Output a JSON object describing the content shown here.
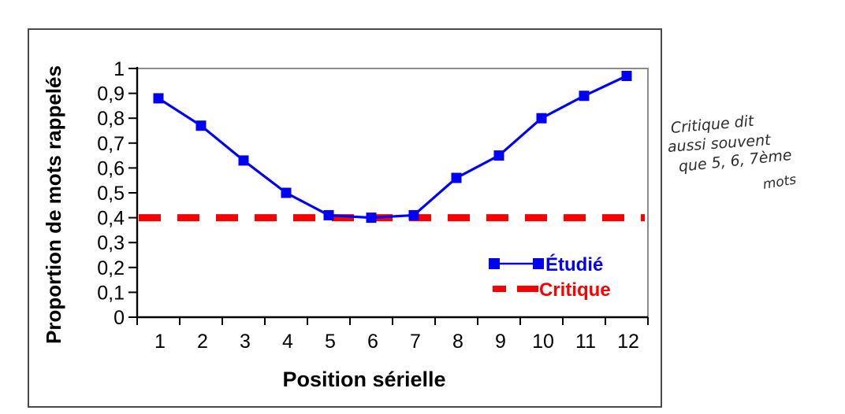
{
  "chart_data": {
    "type": "line",
    "categories": [
      "1",
      "2",
      "3",
      "4",
      "5",
      "6",
      "7",
      "8",
      "9",
      "10",
      "11",
      "12"
    ],
    "series": [
      {
        "name": "Étudié",
        "color": "#0000F5",
        "marker": "square",
        "line_style": "solid",
        "values": [
          0.88,
          0.77,
          0.63,
          0.5,
          0.41,
          0.4,
          0.41,
          0.56,
          0.65,
          0.8,
          0.89,
          0.97
        ]
      },
      {
        "name": "Critique",
        "color": "#FA0000",
        "marker": "none",
        "line_style": "dashed",
        "type": "hline",
        "value": 0.4
      }
    ],
    "title": "",
    "xlabel": "Position sérielle",
    "ylabel": "Proportion de mots rappelés",
    "ylim": [
      0,
      1
    ],
    "ytick_step": 0.1,
    "ytick_labels": [
      "0",
      "0,1",
      "0,2",
      "0,3",
      "0,4",
      "0,5",
      "0,6",
      "0,7",
      "0,8",
      "0,9",
      "1"
    ],
    "grid": false,
    "legend_position": "inside-bottom-right",
    "axis_color": "#000000",
    "plot_border_color": "#8c8c8c",
    "frame_border_color": "#4a4a4a"
  },
  "annotation": {
    "lines": [
      "Critique dit",
      "aussi souvent",
      "que  5, 6, 7ème",
      "mots"
    ],
    "color": "#2d2d2d"
  }
}
